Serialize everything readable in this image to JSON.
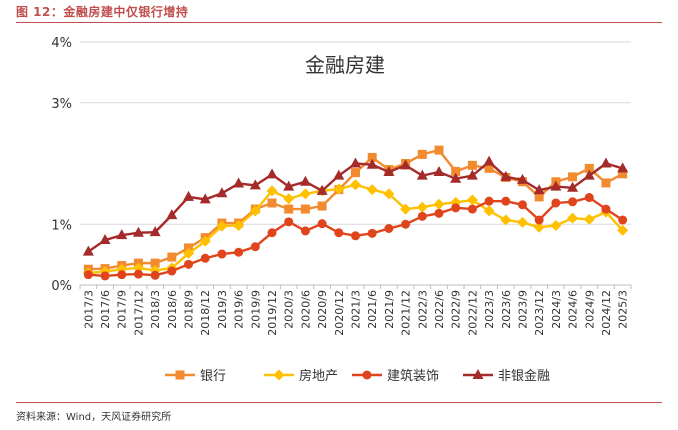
{
  "figure": {
    "label": "图 12：金融房建中仅银行增持",
    "source": "资料来源：Wind，天风证券研究所"
  },
  "chart_data": {
    "type": "line",
    "title": "金融房建",
    "x": [
      "2017/3",
      "2017/6",
      "2017/9",
      "2017/12",
      "2018/3",
      "2018/6",
      "2018/9",
      "2018/12",
      "2019/3",
      "2019/6",
      "2019/9",
      "2019/12",
      "2020/3",
      "2020/6",
      "2020/9",
      "2020/12",
      "2021/3",
      "2021/6",
      "2021/9",
      "2021/12",
      "2022/3",
      "2022/6",
      "2022/9",
      "2022/12",
      "2023/3",
      "2023/6",
      "2023/9",
      "2023/12",
      "2024/3",
      "2024/6",
      "2024/9",
      "2024/12",
      "2025/3"
    ],
    "ylim": [
      0,
      4
    ],
    "yticks": [
      0,
      1,
      3,
      4
    ],
    "ytick_labels": [
      "0%",
      "1%",
      "3%",
      "4%"
    ],
    "grid": "horizontal",
    "legend_position": "bottom",
    "series": [
      {
        "name": "银行",
        "color": "#f28b30",
        "marker": "square",
        "values": [
          0.26,
          0.27,
          0.32,
          0.36,
          0.36,
          0.46,
          0.61,
          0.78,
          1.02,
          1.02,
          1.25,
          1.35,
          1.25,
          1.25,
          1.3,
          1.57,
          1.85,
          2.1,
          1.9,
          2.0,
          2.15,
          2.22,
          1.87,
          1.97,
          1.92,
          1.77,
          1.7,
          1.45,
          1.7,
          1.78,
          1.92,
          1.68,
          1.83
        ]
      },
      {
        "name": "房地产",
        "color": "#ffc000",
        "marker": "diamond",
        "values": [
          0.2,
          0.22,
          0.26,
          0.28,
          0.24,
          0.28,
          0.52,
          0.72,
          0.97,
          0.98,
          1.22,
          1.55,
          1.42,
          1.5,
          1.55,
          1.58,
          1.65,
          1.57,
          1.5,
          1.25,
          1.28,
          1.33,
          1.36,
          1.4,
          1.22,
          1.07,
          1.03,
          0.95,
          0.98,
          1.1,
          1.08,
          1.2,
          0.9
        ]
      },
      {
        "name": "建筑装饰",
        "color": "#e0441c",
        "marker": "circle",
        "values": [
          0.17,
          0.15,
          0.17,
          0.18,
          0.16,
          0.23,
          0.34,
          0.44,
          0.51,
          0.54,
          0.63,
          0.86,
          1.04,
          0.89,
          1.01,
          0.86,
          0.81,
          0.85,
          0.93,
          1.0,
          1.13,
          1.18,
          1.27,
          1.25,
          1.38,
          1.38,
          1.32,
          1.07,
          1.35,
          1.37,
          1.44,
          1.25,
          1.07
        ]
      },
      {
        "name": "非银金融",
        "color": "#a52a2a",
        "marker": "triangle",
        "values": [
          0.55,
          0.74,
          0.82,
          0.86,
          0.87,
          1.15,
          1.45,
          1.41,
          1.51,
          1.67,
          1.64,
          1.82,
          1.62,
          1.7,
          1.55,
          1.8,
          2.0,
          1.98,
          1.86,
          1.97,
          1.8,
          1.86,
          1.75,
          1.8,
          2.03,
          1.78,
          1.73,
          1.56,
          1.62,
          1.6,
          1.8,
          2.0,
          1.92
        ]
      }
    ]
  }
}
